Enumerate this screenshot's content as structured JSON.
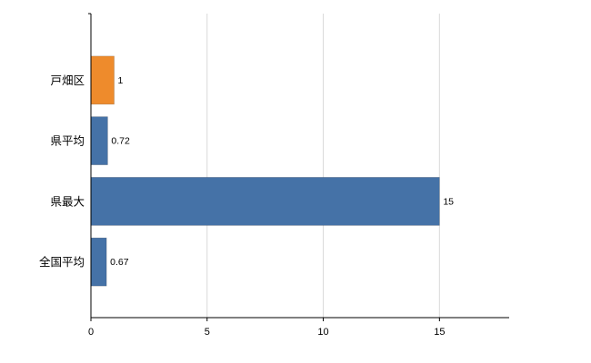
{
  "chart_data": {
    "type": "bar",
    "orientation": "horizontal",
    "categories": [
      "戸畑区",
      "県平均",
      "県最大",
      "全国平均"
    ],
    "values": [
      1,
      0.72,
      15,
      0.67
    ],
    "value_labels": [
      "1",
      "0.72",
      "15",
      "0.67"
    ],
    "bar_colors": [
      "#ee8b2c",
      "#4572a7",
      "#4572a7",
      "#4572a7"
    ],
    "xlim": [
      0,
      18
    ],
    "x_ticks": [
      0,
      5,
      10,
      15
    ],
    "x_tick_labels": [
      "0",
      "5",
      "10",
      "15"
    ],
    "grid": true,
    "legend": false
  },
  "colors": {
    "background": "#ffffff",
    "grid": "#d9d9d9",
    "axis": "#000000",
    "text": "#000000"
  }
}
